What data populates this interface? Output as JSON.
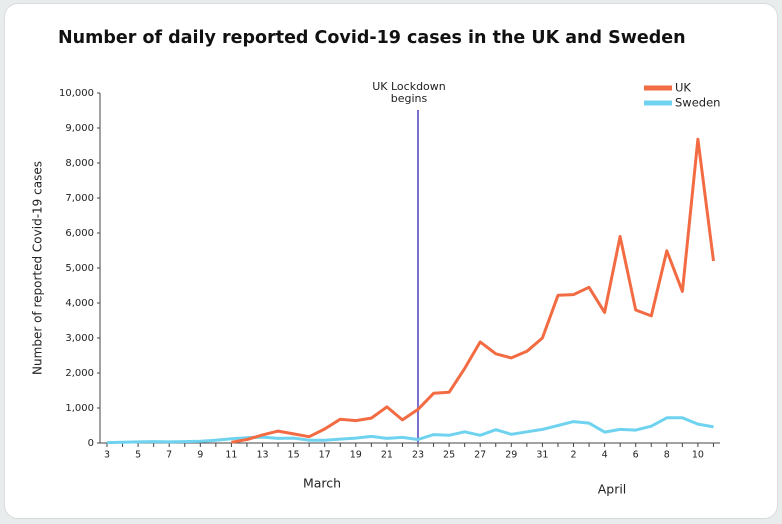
{
  "chart_data": {
    "type": "line",
    "title": "Number of daily reported Covid-19 cases in the UK and Sweden",
    "y_label": "Number of reported Covid-19 cases",
    "categories": [
      "3",
      null,
      "5",
      null,
      "7",
      null,
      "9",
      null,
      "11",
      null,
      "13",
      null,
      "15",
      null,
      "17",
      null,
      "19",
      null,
      "21",
      null,
      "23",
      null,
      "25",
      null,
      "27",
      null,
      "29",
      null,
      "31",
      null,
      "2",
      null,
      "4",
      null,
      "6",
      null,
      "8",
      null,
      "10",
      null
    ],
    "months": [
      "March",
      "April"
    ],
    "series": [
      {
        "name": "UK",
        "color": "#f26b43",
        "values": [
          null,
          null,
          null,
          null,
          null,
          null,
          null,
          null,
          20,
          100,
          230,
          340,
          260,
          180,
          400,
          680,
          640,
          710,
          1030,
          660,
          960,
          1420,
          1450,
          2130,
          2890,
          2550,
          2430,
          2620,
          3000,
          4220,
          4240,
          4450,
          3730,
          5900,
          3800,
          3630,
          5490,
          4330,
          8680,
          5200
        ]
      },
      {
        "name": "Sweden",
        "color": "#6fd3ef",
        "values": [
          10,
          20,
          30,
          40,
          30,
          40,
          50,
          80,
          120,
          150,
          170,
          130,
          140,
          80,
          80,
          110,
          140,
          190,
          130,
          160,
          100,
          240,
          220,
          320,
          220,
          380,
          250,
          320,
          390,
          500,
          610,
          570,
          310,
          390,
          370,
          480,
          720,
          720,
          540,
          460
        ]
      }
    ],
    "ylim": [
      0,
      10000
    ],
    "yticks": [
      0,
      {
        "value": 1000,
        "label": "1,000"
      },
      {
        "value": 2000,
        "label": "2,000"
      },
      {
        "value": 3000,
        "label": "3,000"
      },
      {
        "value": 4000,
        "label": "4,000"
      },
      {
        "value": 5000,
        "label": "5,000"
      },
      {
        "value": 6000,
        "label": "6,000"
      },
      {
        "value": 7000,
        "label": "7,000"
      },
      {
        "value": 8000,
        "label": "8,000"
      },
      {
        "value": 9000,
        "label": "9,000"
      },
      {
        "value": 10000,
        "label": "10,000"
      }
    ],
    "annotation": {
      "lines": [
        "UK Lockdown",
        "begins"
      ],
      "at": "23",
      "color": "#7b6fd0"
    },
    "legend": "top-right"
  }
}
